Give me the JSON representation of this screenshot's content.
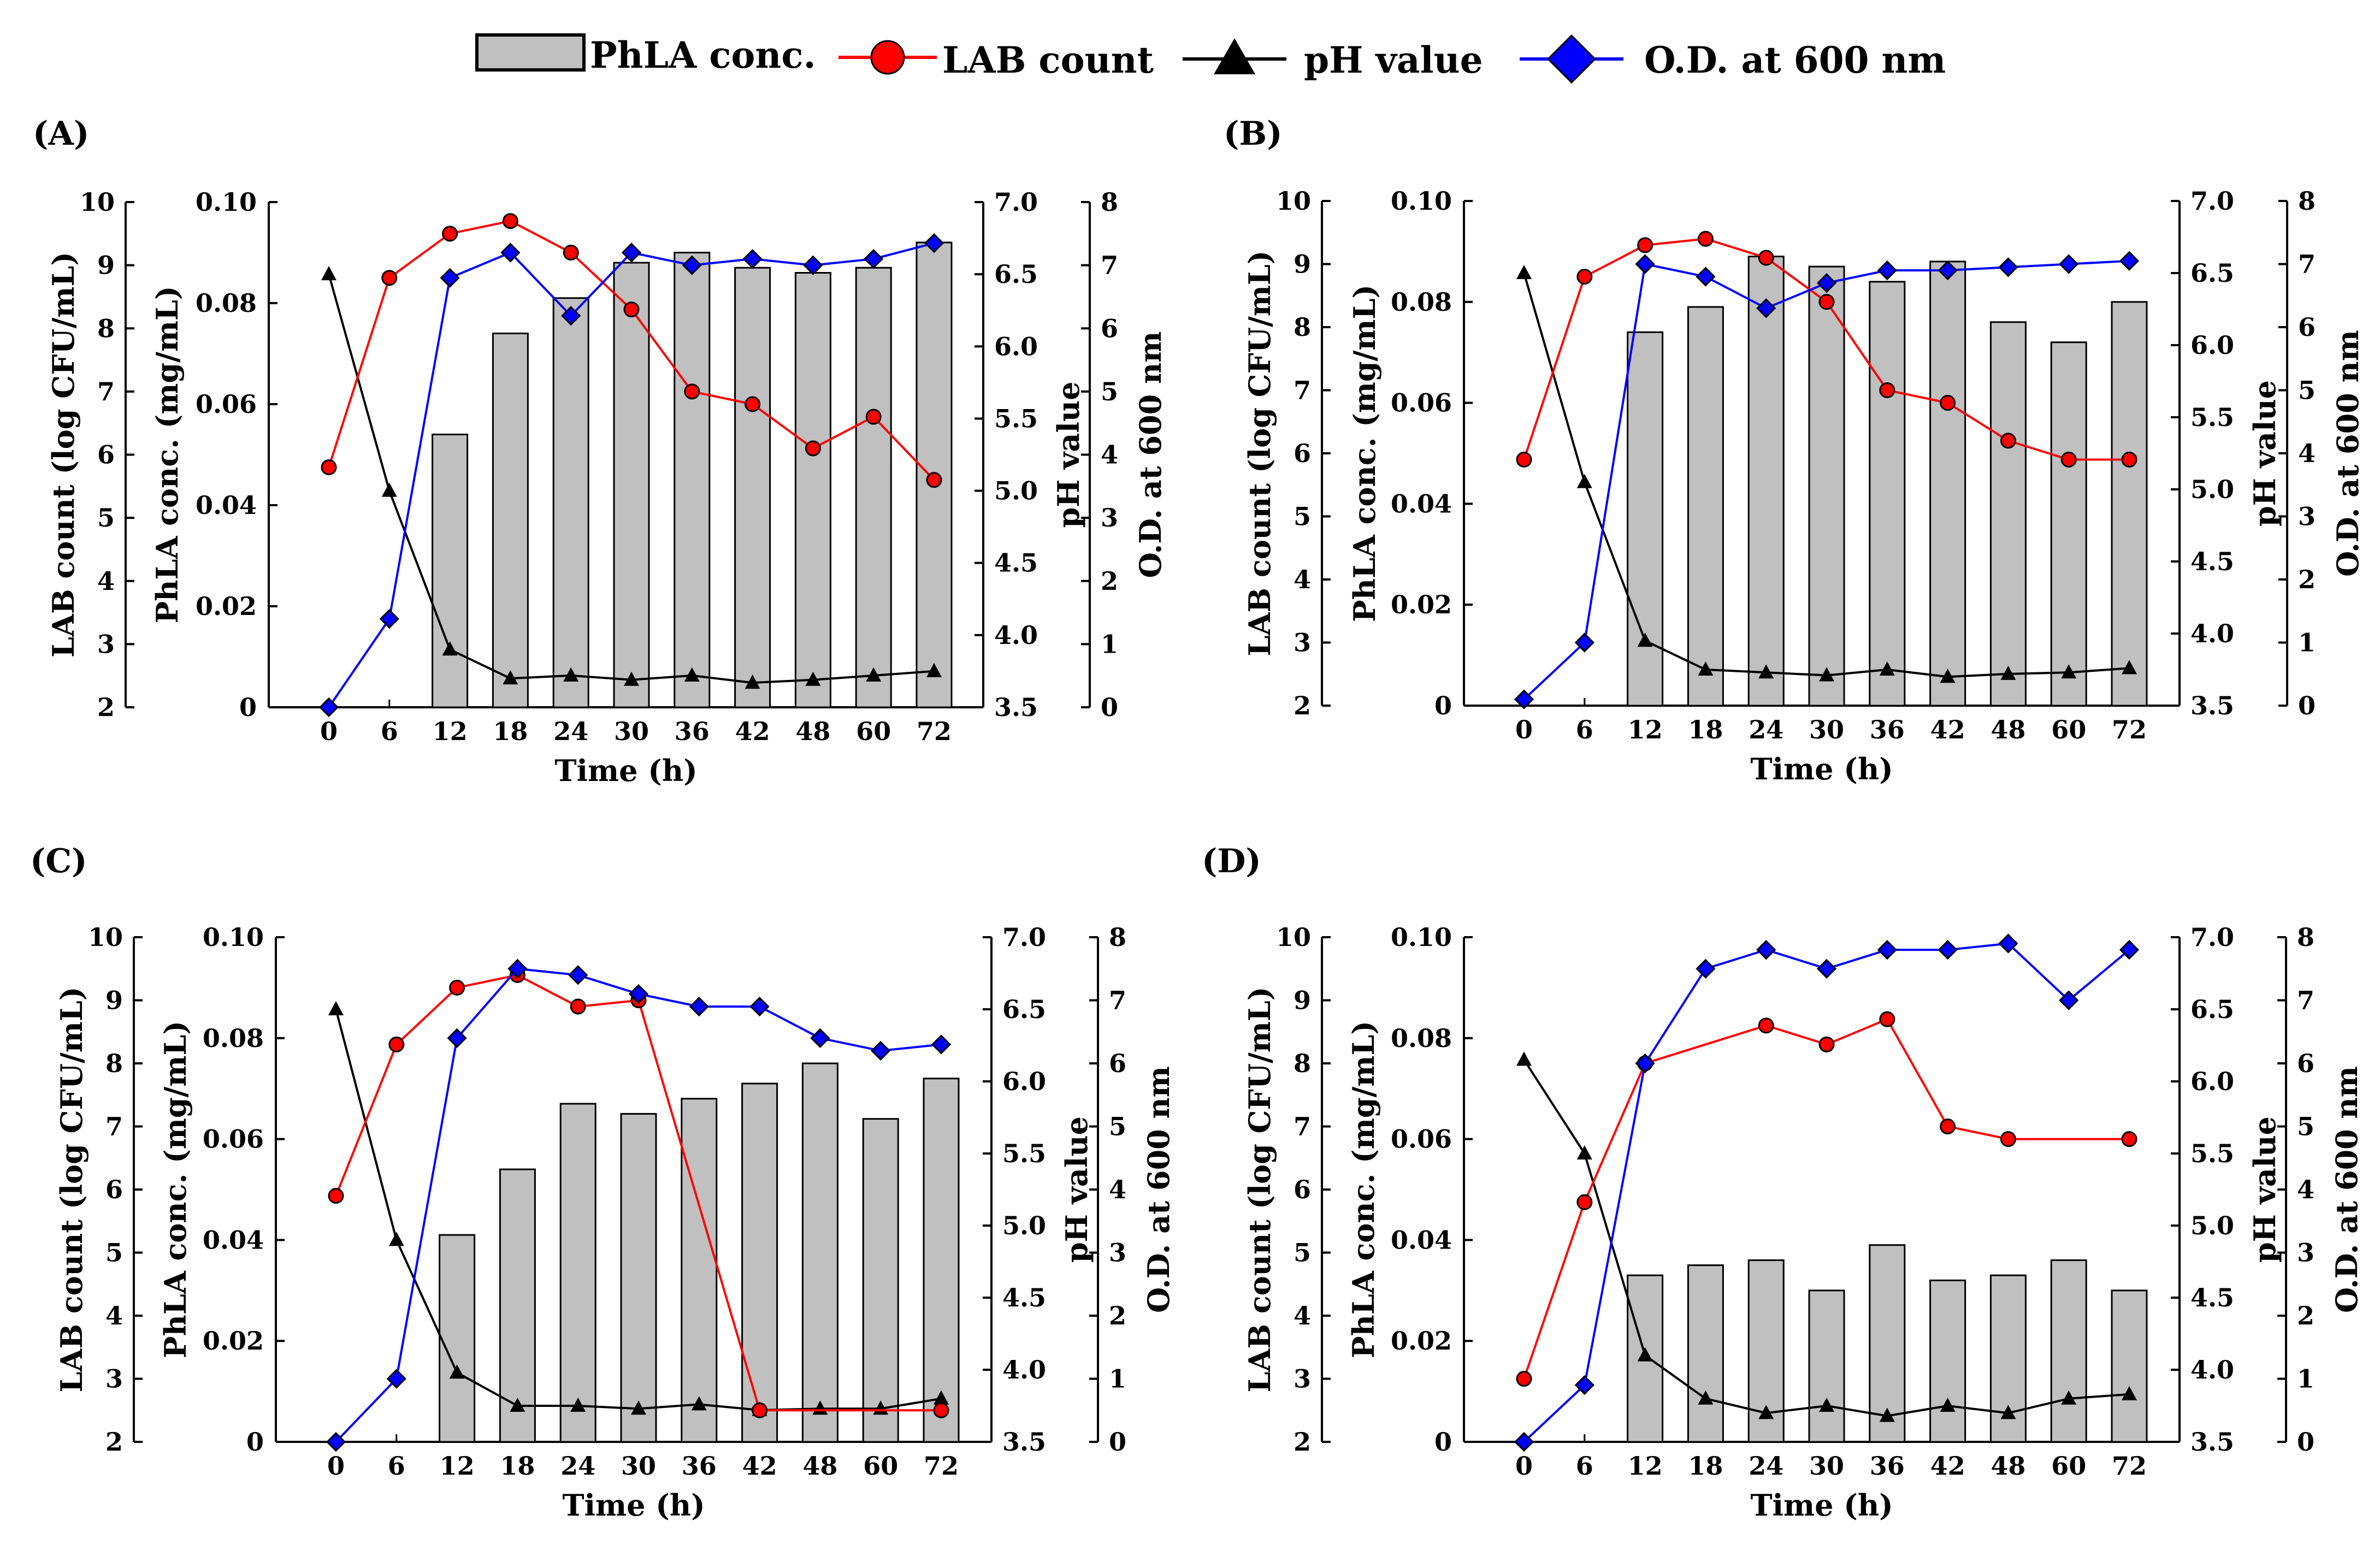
{
  "legend": {
    "items": [
      {
        "label": "PhLA conc.",
        "kind": "bar",
        "color": "#c0c0c0"
      },
      {
        "label": "LAB count",
        "kind": "circle",
        "color": "#ff0000"
      },
      {
        "label": "pH value",
        "kind": "triangle",
        "color": "#000000"
      },
      {
        "label": "O.D. at 600 nm",
        "kind": "diamond",
        "color": "#0000ff"
      }
    ]
  },
  "colors": {
    "bar_fill": "#c0c0c0",
    "lab": "#ff0000",
    "ph": "#000000",
    "od": "#0000ff"
  },
  "axis_titles": {
    "x": "Time (h)",
    "lab": "LAB count (log CFU/mL)",
    "phla": "PhLA conc. (mg/mL)",
    "ph": "pH value",
    "od": "O.D. at 600 nm"
  },
  "chart_data": [
    {
      "panel": "(A)",
      "type": "bar+line",
      "categories": [
        "0",
        "6",
        "12",
        "18",
        "24",
        "30",
        "36",
        "42",
        "48",
        "60",
        "72"
      ],
      "phla_ticks": [
        "0",
        "0.02",
        "0.04",
        "0.06",
        "0.08",
        "0.10"
      ],
      "lab_ticks": [
        "2",
        "3",
        "4",
        "5",
        "6",
        "7",
        "8",
        "9",
        "10"
      ],
      "ph_ticks": [
        "3.5",
        "4.0",
        "4.5",
        "5.0",
        "5.5",
        "6.0",
        "6.5",
        "7.0"
      ],
      "od_ticks": [
        "0",
        "1",
        "2",
        "3",
        "4",
        "5",
        "6",
        "7",
        "8"
      ],
      "phla_ylim": [
        0,
        0.1
      ],
      "lab_ylim": [
        2,
        10
      ],
      "ph_ylim": [
        3.5,
        7.0
      ],
      "od_ylim": [
        0,
        8
      ],
      "series": [
        {
          "name": "PhLA conc.",
          "type": "bar",
          "values": [
            null,
            null,
            0.054,
            0.074,
            0.081,
            0.088,
            0.09,
            0.087,
            0.086,
            0.087,
            0.092
          ]
        },
        {
          "name": "LAB count",
          "type": "line",
          "values": [
            5.8,
            8.8,
            9.5,
            9.7,
            9.2,
            8.3,
            7.0,
            6.8,
            6.1,
            6.6,
            5.6
          ]
        },
        {
          "name": "pH value",
          "type": "line",
          "values": [
            6.5,
            5.0,
            3.9,
            3.7,
            3.72,
            3.69,
            3.72,
            3.67,
            3.69,
            3.72,
            3.75
          ]
        },
        {
          "name": "O.D. at 600 nm",
          "type": "line",
          "values": [
            0.0,
            1.4,
            6.8,
            7.2,
            6.2,
            7.2,
            7.0,
            7.1,
            7.0,
            7.1,
            7.35
          ]
        }
      ],
      "xlabel": "Time (h)"
    },
    {
      "panel": "(B)",
      "type": "bar+line",
      "categories": [
        "0",
        "6",
        "12",
        "18",
        "24",
        "30",
        "36",
        "42",
        "48",
        "60",
        "72"
      ],
      "phla_ticks": [
        "0",
        "0.02",
        "0.04",
        "0.06",
        "0.08",
        "0.10"
      ],
      "lab_ticks": [
        "2",
        "3",
        "4",
        "5",
        "6",
        "7",
        "8",
        "9",
        "10"
      ],
      "ph_ticks": [
        "3.5",
        "4.0",
        "4.5",
        "5.0",
        "5.5",
        "6.0",
        "6.5",
        "7.0"
      ],
      "od_ticks": [
        "0",
        "1",
        "2",
        "3",
        "4",
        "5",
        "6",
        "7",
        "8"
      ],
      "phla_ylim": [
        0,
        0.1
      ],
      "lab_ylim": [
        2,
        10
      ],
      "ph_ylim": [
        3.5,
        7.0
      ],
      "od_ylim": [
        0,
        8
      ],
      "series": [
        {
          "name": "PhLA conc.",
          "type": "bar",
          "values": [
            null,
            null,
            0.074,
            0.079,
            0.089,
            0.087,
            0.084,
            0.088,
            0.076,
            0.072,
            0.08
          ]
        },
        {
          "name": "LAB count",
          "type": "line",
          "values": [
            5.9,
            8.8,
            9.3,
            9.4,
            9.1,
            8.4,
            7.0,
            6.8,
            6.2,
            5.9,
            5.9
          ]
        },
        {
          "name": "pH value",
          "type": "line",
          "values": [
            6.5,
            5.05,
            3.95,
            3.75,
            3.73,
            3.71,
            3.75,
            3.7,
            3.72,
            3.73,
            3.76
          ]
        },
        {
          "name": "O.D. at 600 nm",
          "type": "line",
          "values": [
            0.1,
            1.0,
            7.0,
            6.8,
            6.3,
            6.7,
            6.9,
            6.9,
            6.95,
            7.0,
            7.05
          ]
        }
      ],
      "xlabel": "Time (h)"
    },
    {
      "panel": "(C)",
      "type": "bar+line",
      "categories": [
        "0",
        "6",
        "12",
        "18",
        "24",
        "30",
        "36",
        "42",
        "48",
        "60",
        "72"
      ],
      "phla_ticks": [
        "0",
        "0.02",
        "0.04",
        "0.06",
        "0.08",
        "0.10"
      ],
      "lab_ticks": [
        "2",
        "3",
        "4",
        "5",
        "6",
        "7",
        "8",
        "9",
        "10"
      ],
      "ph_ticks": [
        "3.5",
        "4.0",
        "4.5",
        "5.0",
        "5.5",
        "6.0",
        "6.5",
        "7.0"
      ],
      "od_ticks": [
        "0",
        "1",
        "2",
        "3",
        "4",
        "5",
        "6",
        "7",
        "8"
      ],
      "phla_ylim": [
        0,
        0.1
      ],
      "lab_ylim": [
        2,
        10
      ],
      "ph_ylim": [
        3.5,
        7.0
      ],
      "od_ylim": [
        0,
        8
      ],
      "series": [
        {
          "name": "PhLA conc.",
          "type": "bar",
          "values": [
            null,
            null,
            0.041,
            0.054,
            0.067,
            0.065,
            0.068,
            0.071,
            0.075,
            0.064,
            0.072
          ]
        },
        {
          "name": "LAB count",
          "type": "line",
          "values": [
            5.9,
            8.3,
            9.2,
            9.4,
            8.9,
            9.0,
            null,
            2.5,
            null,
            null,
            2.5
          ]
        },
        {
          "name": "pH value",
          "type": "line",
          "values": [
            6.5,
            4.9,
            3.98,
            3.75,
            3.75,
            3.73,
            3.76,
            3.72,
            3.73,
            3.73,
            3.8
          ]
        },
        {
          "name": "O.D. at 600 nm",
          "type": "line",
          "values": [
            0.0,
            1.0,
            6.4,
            7.5,
            7.4,
            7.1,
            6.9,
            6.9,
            6.4,
            6.2,
            6.3
          ]
        }
      ],
      "xlabel": "Time (h)"
    },
    {
      "panel": "(D)",
      "type": "bar+line",
      "categories": [
        "0",
        "6",
        "12",
        "18",
        "24",
        "30",
        "36",
        "42",
        "48",
        "60",
        "72"
      ],
      "phla_ticks": [
        "0",
        "0.02",
        "0.04",
        "0.06",
        "0.08",
        "0.10"
      ],
      "lab_ticks": [
        "2",
        "3",
        "4",
        "5",
        "6",
        "7",
        "8",
        "9",
        "10"
      ],
      "ph_ticks": [
        "3.5",
        "4.0",
        "4.5",
        "5.0",
        "5.5",
        "6.0",
        "6.5",
        "7.0"
      ],
      "od_ticks": [
        "0",
        "1",
        "2",
        "3",
        "4",
        "5",
        "6",
        "7",
        "8"
      ],
      "phla_ylim": [
        0,
        0.1
      ],
      "lab_ylim": [
        2,
        10
      ],
      "ph_ylim": [
        3.5,
        7.0
      ],
      "od_ylim": [
        0,
        8
      ],
      "series": [
        {
          "name": "PhLA conc.",
          "type": "bar",
          "values": [
            null,
            null,
            0.033,
            0.035,
            0.036,
            0.03,
            0.039,
            0.032,
            0.033,
            0.036,
            0.03
          ]
        },
        {
          "name": "LAB count",
          "type": "line",
          "values": [
            3.0,
            5.8,
            8.0,
            null,
            8.6,
            8.3,
            8.7,
            7.0,
            6.8,
            null,
            6.8
          ]
        },
        {
          "name": "pH value",
          "type": "line",
          "values": [
            6.15,
            5.5,
            4.1,
            3.8,
            3.7,
            3.75,
            3.68,
            3.75,
            3.7,
            3.8,
            3.83
          ]
        },
        {
          "name": "O.D. at 600 nm",
          "type": "line",
          "values": [
            0.0,
            0.9,
            6.0,
            7.5,
            7.8,
            7.5,
            7.8,
            7.8,
            7.9,
            7.0,
            7.8
          ]
        }
      ],
      "xlabel": "Time (h)"
    }
  ]
}
